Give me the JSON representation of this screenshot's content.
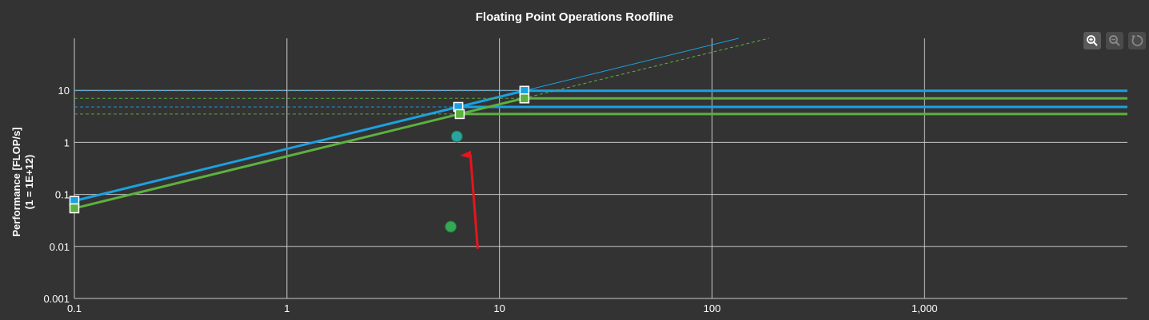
{
  "chart_data": {
    "type": "line",
    "title": "Floating Point Operations Roofline",
    "ylabel_line1": "Performance [FLOP/s]",
    "ylabel_line2": "(1 = 1E+12)",
    "xlabel": "",
    "x_scale": "log",
    "y_scale": "log",
    "xlim": [
      0.1,
      9000
    ],
    "ylim": [
      0.001,
      100
    ],
    "x_ticks": [
      0.1,
      1,
      10,
      100,
      1000
    ],
    "x_tick_labels": [
      "0.1",
      "1",
      "10",
      "100",
      "1,000"
    ],
    "y_ticks": [
      0.001,
      0.01,
      0.1,
      1,
      10
    ],
    "y_tick_labels": [
      "0.001",
      "0.01",
      "0.1",
      "1",
      "10"
    ],
    "grid": true,
    "series": [
      {
        "color": "#1ba1e2",
        "bandwidth": 0.75,
        "compute_peaks": [
          9.8,
          4.8
        ],
        "ridge_points": [
          [
            13.1,
            9.8
          ],
          [
            6.4,
            4.8
          ]
        ]
      },
      {
        "color": "#5db13f",
        "bandwidth": 0.54,
        "compute_peaks": [
          7.0,
          3.5
        ],
        "ridge_points": [
          [
            13.1,
            7.0
          ],
          [
            6.5,
            3.5
          ]
        ]
      }
    ],
    "endpoint_markers": [
      [
        0.1,
        0.075,
        "#1ba1e2"
      ],
      [
        0.1,
        0.054,
        "#5db13f"
      ]
    ],
    "data_points": [
      {
        "x": 6.3,
        "y": 1.3,
        "color": "#2aa3a0"
      },
      {
        "x": 5.9,
        "y": 0.024,
        "color": "#34a853"
      }
    ],
    "annotation": {
      "type": "arrow",
      "color": "#e8141c",
      "from": [
        7.9,
        0.009
      ],
      "to": [
        7.3,
        0.95
      ]
    }
  },
  "toolbar": {
    "zoom_in": "zoom-in-icon",
    "zoom_out": "zoom-out-icon",
    "reset": "reset-icon"
  }
}
